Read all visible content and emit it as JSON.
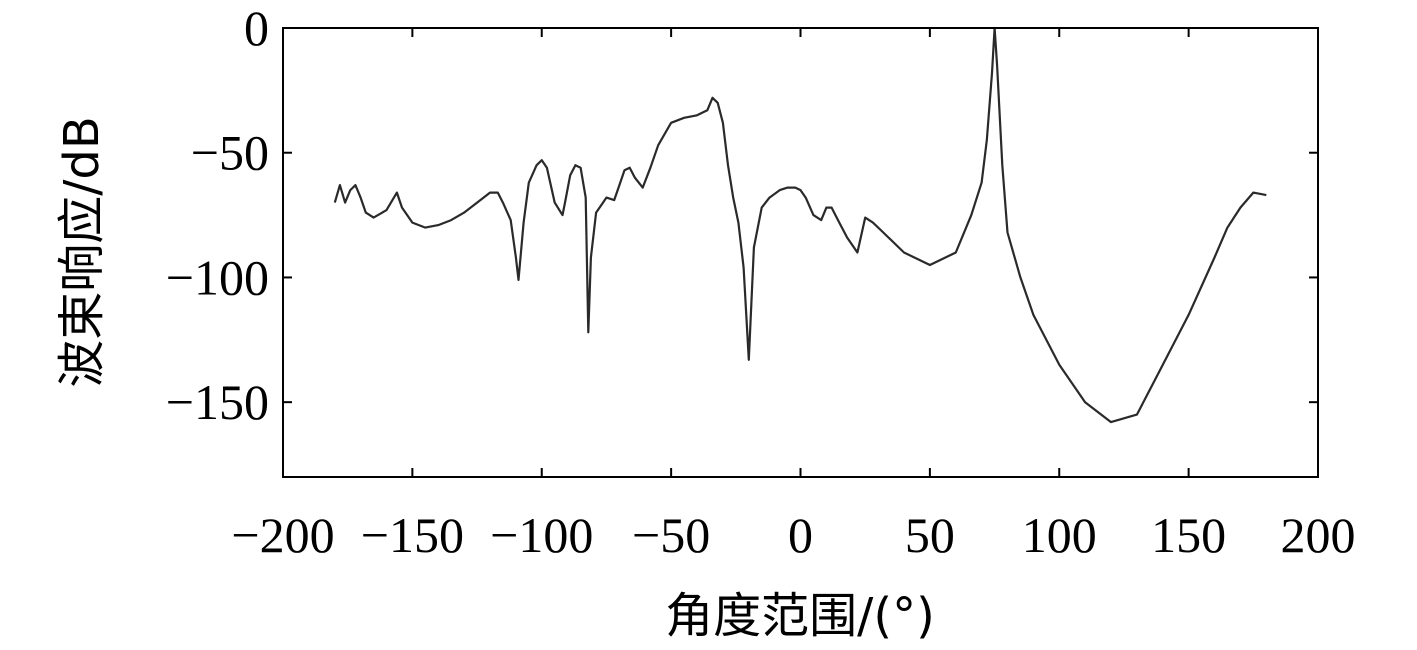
{
  "chart_data": {
    "type": "line",
    "title": "",
    "xlabel": "角度范围/(°)",
    "ylabel": "波束响应/dB",
    "xlim": [
      -200,
      200
    ],
    "ylim": [
      -180,
      0
    ],
    "xticks": [
      -200,
      -150,
      -100,
      -50,
      0,
      50,
      100,
      150,
      200
    ],
    "xtick_labels": [
      "−200",
      "−150",
      "−100",
      "−50",
      "0",
      "50",
      "100",
      "150",
      "200"
    ],
    "yticks": [
      0,
      -50,
      -100,
      -150
    ],
    "ytick_labels": [
      "0",
      "−50",
      "−100",
      "−150"
    ],
    "grid": false,
    "legend": "none",
    "line_color": "#2a2a2a",
    "series": [
      {
        "x": [
          -180,
          -178,
          -176,
          -174,
          -172,
          -170,
          -168,
          -165,
          -160,
          -156,
          -154,
          -150,
          -145,
          -140,
          -135,
          -130,
          -125,
          -120,
          -117,
          -115,
          -112,
          -110,
          -109,
          -107,
          -105,
          -102,
          -100,
          -98,
          -95,
          -92,
          -91,
          -89,
          -87,
          -85,
          -83,
          -82,
          -81,
          -79,
          -77,
          -75,
          -72,
          -70,
          -68,
          -66,
          -64,
          -61,
          -58,
          -55,
          -50,
          -45,
          -40,
          -36,
          -34,
          -32,
          -30,
          -28,
          -26,
          -24,
          -22,
          -20,
          -18,
          -15,
          -12,
          -8,
          -5,
          -2,
          0,
          2,
          5,
          8,
          10,
          12,
          15,
          18,
          22,
          25,
          28,
          32,
          40,
          50,
          60,
          66,
          70,
          72,
          74,
          75,
          76,
          78,
          80,
          85,
          90,
          100,
          110,
          120,
          130,
          140,
          150,
          160,
          165,
          170,
          175,
          180
        ],
        "y": [
          -70,
          -63,
          -70,
          -65,
          -63,
          -68,
          -74,
          -76,
          -73,
          -66,
          -72,
          -78,
          -80,
          -79,
          -77,
          -74,
          -70,
          -66,
          -66,
          -70,
          -77,
          -92,
          -101,
          -78,
          -62,
          -55,
          -53,
          -56,
          -70,
          -75,
          -70,
          -59,
          -55,
          -56,
          -68,
          -122,
          -92,
          -74,
          -71,
          -68,
          -69,
          -63,
          -57,
          -56,
          -60,
          -64,
          -56,
          -47,
          -38,
          -36,
          -35,
          -33,
          -28,
          -30,
          -38,
          -55,
          -68,
          -78,
          -96,
          -133,
          -88,
          -72,
          -68,
          -65,
          -64,
          -64,
          -65,
          -68,
          -75,
          -77,
          -72,
          -72,
          -78,
          -84,
          -90,
          -76,
          -78,
          -82,
          -90,
          -95,
          -90,
          -75,
          -62,
          -45,
          -18,
          0,
          -15,
          -55,
          -82,
          -100,
          -115,
          -135,
          -150,
          -158,
          -155,
          -135,
          -115,
          -92,
          -80,
          -72,
          -66,
          -67
        ]
      }
    ]
  }
}
